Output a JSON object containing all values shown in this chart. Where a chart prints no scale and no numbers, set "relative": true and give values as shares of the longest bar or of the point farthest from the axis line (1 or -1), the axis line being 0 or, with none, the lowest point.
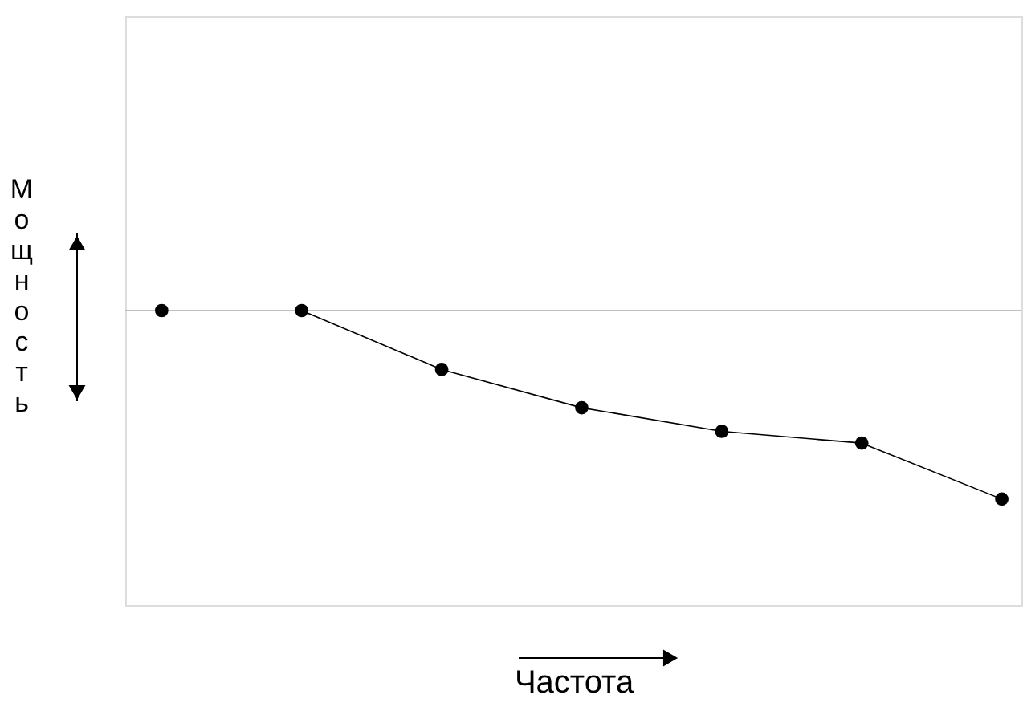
{
  "chart_data": {
    "type": "line",
    "relative": true,
    "xlabel": "Частота",
    "ylabel": "Мощность",
    "categories": [
      null,
      null,
      null,
      null,
      null,
      null,
      null
    ],
    "series": [
      {
        "color": "#000000",
        "values": [
          1,
          1,
          0.8,
          0.67,
          0.59,
          0.55,
          0.36
        ]
      }
    ],
    "marker": "circle",
    "ref_lines": [
      {
        "axis": "y",
        "value": 1,
        "color": "#c0c0c0"
      }
    ],
    "grid": false
  }
}
